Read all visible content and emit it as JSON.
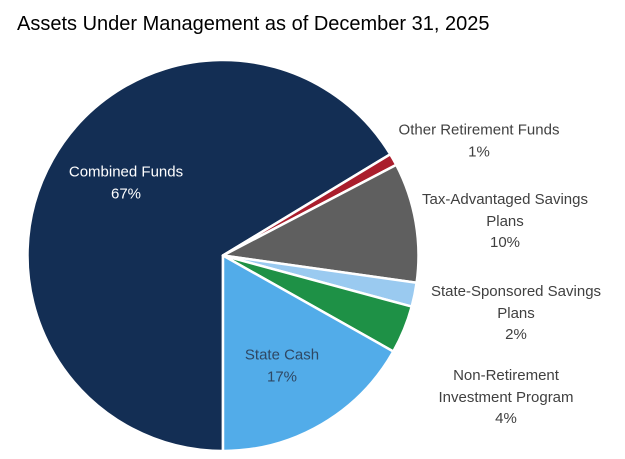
{
  "chart_data": {
    "type": "pie",
    "title": "Assets Under Management as of December 31, 2025",
    "start_angle_deg": 180,
    "direction": "clockwise",
    "separator_color": "#ffffff",
    "outside_label_color": "#404040",
    "slices": [
      {
        "label": "Combined Funds",
        "value": 67,
        "pct_label": "67%",
        "color": "#132E54",
        "label_position": "inside",
        "label_color": "#ffffff"
      },
      {
        "label": "Other Retirement Funds",
        "value": 1,
        "pct_label": "1%",
        "color": "#AA1E2D",
        "label_position": "outside",
        "label_color": "#404040"
      },
      {
        "label": "Tax-Advantaged Savings Plans",
        "value": 10,
        "pct_label": "10%",
        "color": "#5F5F5F",
        "label_position": "outside",
        "label_color": "#404040"
      },
      {
        "label": "State-Sponsored Savings Plans",
        "value": 2,
        "pct_label": "2%",
        "color": "#9ACAF0",
        "label_position": "outside",
        "label_color": "#404040"
      },
      {
        "label": "Non-Retirement Investment Program",
        "value": 4,
        "pct_label": "4%",
        "color": "#1E9146",
        "label_position": "outside",
        "label_color": "#404040"
      },
      {
        "label": "State Cash",
        "value": 17,
        "pct_label": "17%",
        "color": "#52ACE9",
        "label_position": "inside",
        "label_color": "#2F4763"
      }
    ]
  }
}
